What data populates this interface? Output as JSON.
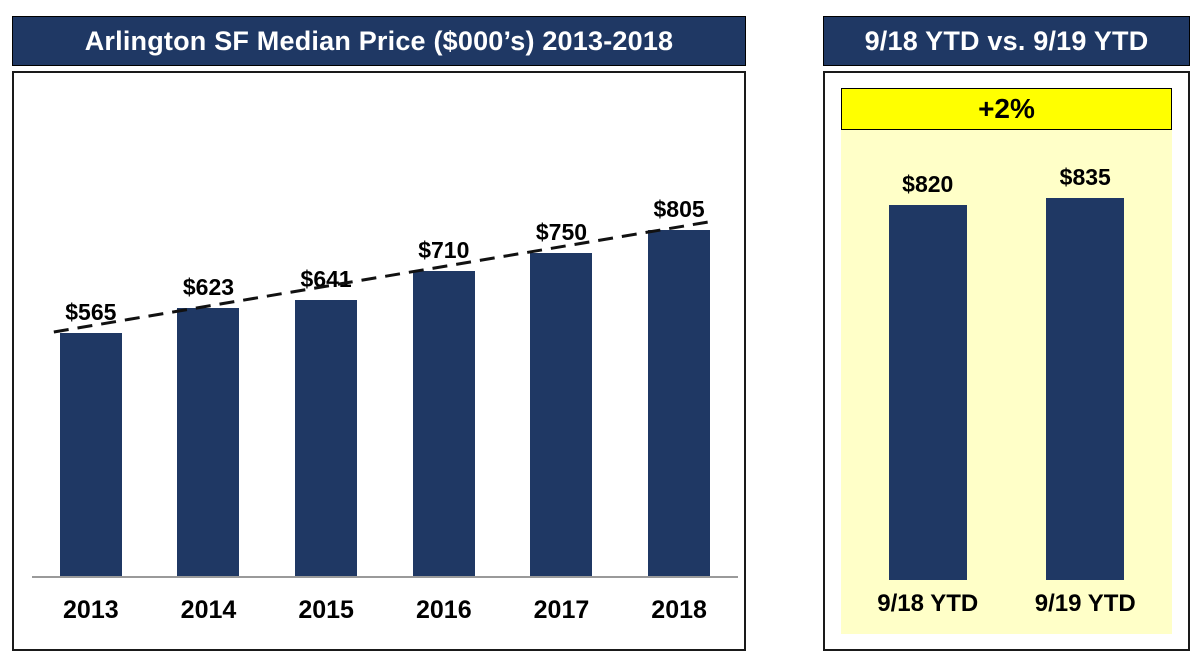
{
  "chart_data": [
    {
      "type": "bar",
      "title": "Arlington SF Median Price ($000’s) 2013-2018",
      "categories": [
        "2013",
        "2014",
        "2015",
        "2016",
        "2017",
        "2018"
      ],
      "values": [
        565,
        623,
        641,
        710,
        750,
        805
      ],
      "data_labels": [
        "$565",
        "$623",
        "$641",
        "$710",
        "$750",
        "$805"
      ],
      "bar_color": "#1F3864",
      "trendline": {
        "style": "dashed",
        "color": "#111111"
      },
      "xlabel": "",
      "ylabel": "",
      "grid": false,
      "legend": false
    },
    {
      "type": "bar",
      "title": "9/18 YTD vs. 9/19 YTD",
      "categories": [
        "9/18 YTD",
        "9/19 YTD"
      ],
      "values": [
        820,
        835
      ],
      "data_labels": [
        "$820",
        "$835"
      ],
      "annotation": "+2%",
      "bar_color": "#1F3864",
      "annotation_bg": "#FFFF00",
      "plot_bg": "#FFFFC8",
      "grid": false,
      "legend": false
    }
  ],
  "colors": {
    "header_bg": "#1F3864",
    "header_text": "#FFFFFF",
    "bar": "#1F3864",
    "panel_border": "#000000",
    "highlight_yellow": "#FFFF00",
    "pale_yellow": "#FFFFC8"
  }
}
